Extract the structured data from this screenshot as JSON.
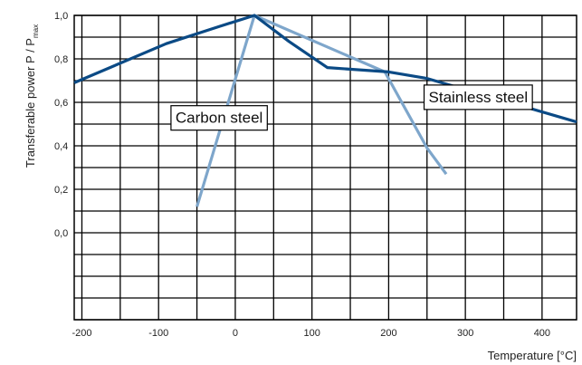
{
  "chart_data": {
    "type": "line",
    "title": "",
    "xlabel": "Temperature [°C]",
    "ylabel": "Transferable power P / P",
    "ylabel_sub": "max",
    "xlim": [
      -210,
      445
    ],
    "ylim": [
      -0.4,
      1.0
    ],
    "x_ticks": [
      {
        "value": -200,
        "label": "-200"
      },
      {
        "value": -100,
        "label": "-100"
      },
      {
        "value": 0,
        "label": "0"
      },
      {
        "value": 100,
        "label": "100"
      },
      {
        "value": 200,
        "label": "200"
      },
      {
        "value": 300,
        "label": "300"
      },
      {
        "value": 400,
        "label": "400"
      }
    ],
    "y_ticks": [
      {
        "value": 0.0,
        "label": "0,0"
      },
      {
        "value": 0.2,
        "label": "0,2"
      },
      {
        "value": 0.4,
        "label": "0,4"
      },
      {
        "value": 0.6,
        "label": "0,6"
      },
      {
        "value": 0.8,
        "label": "0,8"
      },
      {
        "value": 1.0,
        "label": "1,0"
      }
    ],
    "grid": true,
    "grid_x_step": 50,
    "grid_y_step": 0.1,
    "series": [
      {
        "name": "Stainless steel",
        "color": "#0b4a85",
        "points": [
          {
            "x": -210,
            "y": 0.69
          },
          {
            "x": -90,
            "y": 0.87
          },
          {
            "x": -20,
            "y": 0.95
          },
          {
            "x": 25,
            "y": 1.0
          },
          {
            "x": 70,
            "y": 0.88
          },
          {
            "x": 120,
            "y": 0.76
          },
          {
            "x": 200,
            "y": 0.74
          },
          {
            "x": 250,
            "y": 0.71
          },
          {
            "x": 445,
            "y": 0.51
          }
        ]
      },
      {
        "name": "Carbon steel",
        "color": "#7ea6cb",
        "points": [
          {
            "x": -50,
            "y": 0.12
          },
          {
            "x": 25,
            "y": 1.0
          },
          {
            "x": 195,
            "y": 0.74
          },
          {
            "x": 250,
            "y": 0.39
          },
          {
            "x": 275,
            "y": 0.27
          }
        ]
      }
    ],
    "annotations": [
      {
        "text": "Carbon steel",
        "series": "Carbon steel",
        "box_x": -85,
        "box_y": 0.545
      },
      {
        "text": "Stainless steel",
        "series": "Stainless steel",
        "box_x": 245,
        "box_y": 0.64
      }
    ]
  }
}
